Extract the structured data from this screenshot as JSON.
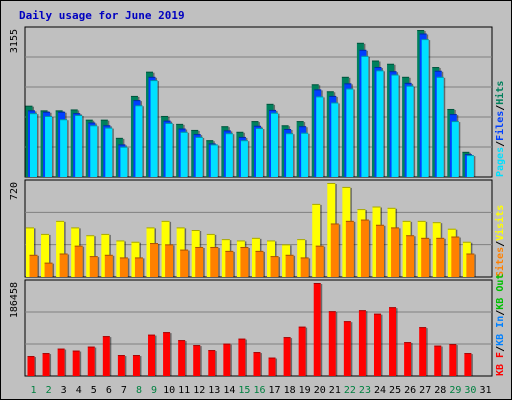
{
  "title": "Daily usage for June 2019",
  "colors": {
    "background": "#c0c0c0",
    "plot": "#c0c0c0",
    "title": "#0000c0",
    "hits": "#00805c",
    "files": "#0040ff",
    "pages": "#00e0ff",
    "visits": "#ffff00",
    "sites": "#ff8000",
    "kbin": "#0080ff",
    "kbout": "#00c000",
    "kbf": "#ff0000",
    "weekday_label": "#000000",
    "weekend_label": "#008040"
  },
  "chart_data": [
    {
      "type": "bar",
      "panel": "top",
      "y_max_label": "3155",
      "ylim": [
        0,
        3155
      ],
      "categories": [
        "1",
        "2",
        "3",
        "4",
        "5",
        "6",
        "7",
        "8",
        "9",
        "10",
        "11",
        "12",
        "13",
        "14",
        "15",
        "16",
        "17",
        "18",
        "19",
        "20",
        "21",
        "22",
        "23",
        "24",
        "25",
        "26",
        "27",
        "28",
        "29",
        "30",
        "31"
      ],
      "weekend_days": [
        "1",
        "2",
        "8",
        "9",
        "15",
        "16",
        "22",
        "23",
        "29",
        "30"
      ],
      "legend": [
        "Pages",
        "Files",
        "Hits"
      ],
      "series": [
        {
          "name": "Hits",
          "values": [
            1530,
            1430,
            1430,
            1450,
            1230,
            1230,
            840,
            1740,
            2260,
            1310,
            1140,
            1010,
            790,
            1090,
            970,
            1200,
            1570,
            1110,
            1200,
            1990,
            1840,
            2150,
            2880,
            2500,
            2430,
            2150,
            3155,
            2360,
            1460,
            540,
            0
          ]
        },
        {
          "name": "Files",
          "values": [
            1430,
            1400,
            1400,
            1370,
            1170,
            1110,
            700,
            1650,
            2150,
            1210,
            1040,
            920,
            720,
            1000,
            860,
            1100,
            1440,
            1030,
            1090,
            1880,
            1740,
            2010,
            2730,
            2360,
            2270,
            2020,
            3080,
            2280,
            1350,
            490,
            0
          ]
        },
        {
          "name": "Pages",
          "values": [
            1370,
            1310,
            1240,
            1330,
            1110,
            1060,
            650,
            1540,
            2080,
            1160,
            970,
            860,
            700,
            940,
            790,
            1050,
            1380,
            940,
            950,
            1730,
            1600,
            1900,
            2600,
            2290,
            2200,
            1960,
            2960,
            2150,
            1200,
            470,
            0
          ]
        }
      ]
    },
    {
      "type": "bar",
      "panel": "middle",
      "y_max_label": "720",
      "ylim": [
        0,
        720
      ],
      "categories": [
        "1",
        "2",
        "3",
        "4",
        "5",
        "6",
        "7",
        "8",
        "9",
        "10",
        "11",
        "12",
        "13",
        "14",
        "15",
        "16",
        "17",
        "18",
        "19",
        "20",
        "21",
        "22",
        "23",
        "24",
        "25",
        "26",
        "27",
        "28",
        "29",
        "30",
        "31"
      ],
      "legend": [
        "Sites",
        "Visits"
      ],
      "series": [
        {
          "name": "Visits",
          "values": [
            380,
            330,
            430,
            380,
            320,
            330,
            280,
            270,
            380,
            430,
            380,
            360,
            330,
            290,
            280,
            300,
            280,
            250,
            290,
            560,
            720,
            690,
            520,
            540,
            530,
            430,
            430,
            420,
            370,
            270,
            0
          ]
        },
        {
          "name": "Sites",
          "values": [
            170,
            110,
            180,
            240,
            160,
            170,
            150,
            150,
            260,
            250,
            210,
            230,
            230,
            200,
            230,
            200,
            160,
            170,
            150,
            240,
            410,
            430,
            440,
            400,
            380,
            320,
            300,
            300,
            310,
            180,
            0
          ]
        }
      ]
    },
    {
      "type": "bar",
      "panel": "bottom",
      "y_max_label": "186458",
      "ylim": [
        0,
        186458
      ],
      "categories": [
        "1",
        "2",
        "3",
        "4",
        "5",
        "6",
        "7",
        "8",
        "9",
        "10",
        "11",
        "12",
        "13",
        "14",
        "15",
        "16",
        "17",
        "18",
        "19",
        "20",
        "21",
        "22",
        "23",
        "24",
        "25",
        "26",
        "27",
        "28",
        "29",
        "30",
        "31"
      ],
      "legend": [
        "KB F",
        "KB In",
        "KB Out"
      ],
      "series": [
        {
          "name": "KB F",
          "values": [
            40000,
            46000,
            55000,
            51000,
            59000,
            80000,
            42000,
            42000,
            83000,
            88000,
            72000,
            62000,
            52000,
            65000,
            75000,
            48000,
            37000,
            78000,
            99000,
            186458,
            130000,
            110000,
            132000,
            125000,
            138000,
            68000,
            98000,
            61000,
            64000,
            46000,
            0
          ]
        }
      ]
    }
  ]
}
